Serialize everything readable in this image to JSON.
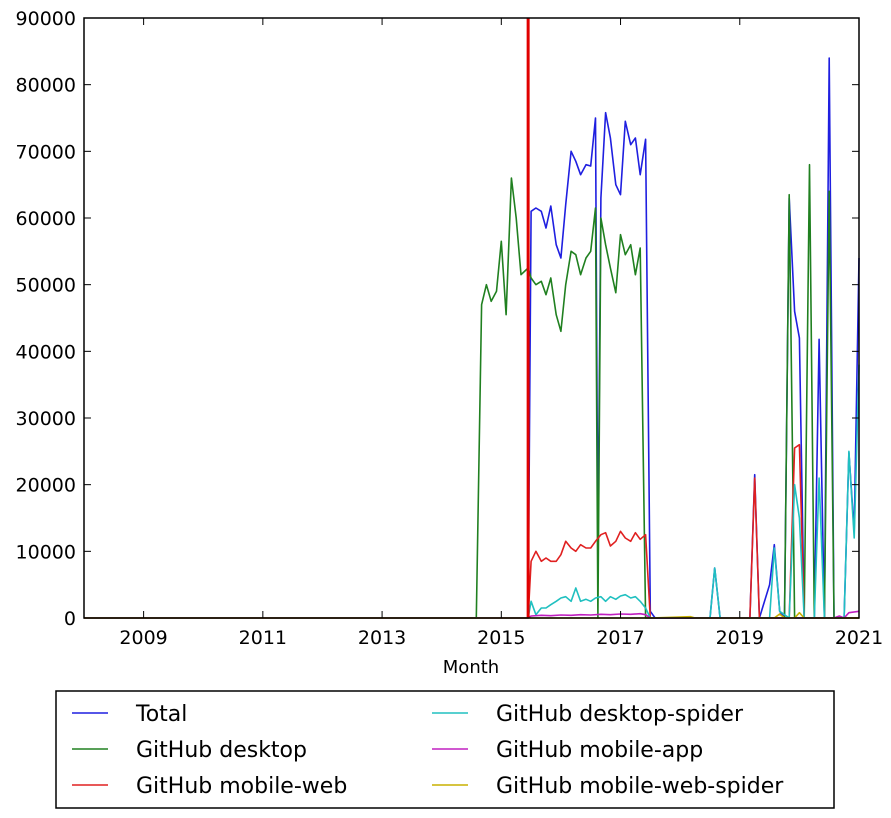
{
  "chart_data": {
    "type": "line",
    "title": "",
    "xlabel": "Month",
    "ylabel": "",
    "xlim": [
      2008.0,
      2021.0
    ],
    "ylim": [
      0,
      90000
    ],
    "x_ticks": [
      "2009",
      "2011",
      "2013",
      "2015",
      "2017",
      "2019",
      "2021"
    ],
    "y_ticks": [
      "0",
      "10000",
      "20000",
      "30000",
      "40000",
      "50000",
      "60000",
      "70000",
      "80000",
      "90000"
    ],
    "grid": false,
    "legend_position": "bottom, below plot, two columns",
    "vertical_marker": {
      "x": 2015.45,
      "color": "#e00000"
    },
    "series": [
      {
        "name": "Total",
        "color": "#1f1fe0",
        "points": [
          [
            2008.0,
            0
          ],
          [
            2014.6,
            0
          ],
          [
            2015.45,
            0
          ],
          [
            2015.5,
            61000
          ],
          [
            2015.58,
            61500
          ],
          [
            2015.67,
            61000
          ],
          [
            2015.75,
            58500
          ],
          [
            2015.83,
            61800
          ],
          [
            2015.92,
            56000
          ],
          [
            2016.0,
            54000
          ],
          [
            2016.08,
            62000
          ],
          [
            2016.17,
            70000
          ],
          [
            2016.25,
            68500
          ],
          [
            2016.33,
            66500
          ],
          [
            2016.42,
            68000
          ],
          [
            2016.5,
            67800
          ],
          [
            2016.58,
            75000
          ],
          [
            2016.62,
            10000
          ],
          [
            2016.67,
            63000
          ],
          [
            2016.75,
            75800
          ],
          [
            2016.83,
            72000
          ],
          [
            2016.92,
            65000
          ],
          [
            2017.0,
            63500
          ],
          [
            2017.08,
            74500
          ],
          [
            2017.17,
            71000
          ],
          [
            2017.25,
            72000
          ],
          [
            2017.33,
            66500
          ],
          [
            2017.42,
            71800
          ],
          [
            2017.5,
            1000
          ],
          [
            2017.58,
            0
          ],
          [
            2018.5,
            0
          ],
          [
            2018.58,
            7500
          ],
          [
            2018.67,
            0
          ],
          [
            2019.17,
            0
          ],
          [
            2019.25,
            21500
          ],
          [
            2019.33,
            0
          ],
          [
            2019.5,
            5000
          ],
          [
            2019.58,
            11000
          ],
          [
            2019.67,
            1000
          ],
          [
            2019.75,
            0
          ],
          [
            2019.83,
            63000
          ],
          [
            2019.92,
            46000
          ],
          [
            2020.0,
            42000
          ],
          [
            2020.08,
            0
          ],
          [
            2020.17,
            0
          ],
          [
            2020.25,
            0
          ],
          [
            2020.33,
            41800
          ],
          [
            2020.42,
            0
          ],
          [
            2020.5,
            84000
          ],
          [
            2020.58,
            0
          ],
          [
            2020.75,
            0
          ],
          [
            2020.83,
            24800
          ],
          [
            2020.92,
            13000
          ],
          [
            2021.0,
            54000
          ]
        ]
      },
      {
        "name": "GitHub desktop",
        "color": "#208020",
        "points": [
          [
            2008.0,
            0
          ],
          [
            2014.58,
            0
          ],
          [
            2014.67,
            47000
          ],
          [
            2014.75,
            50000
          ],
          [
            2014.83,
            47500
          ],
          [
            2014.92,
            49000
          ],
          [
            2015.0,
            56500
          ],
          [
            2015.08,
            45500
          ],
          [
            2015.17,
            66000
          ],
          [
            2015.25,
            60000
          ],
          [
            2015.33,
            51500
          ],
          [
            2015.45,
            52500
          ],
          [
            2015.5,
            51000
          ],
          [
            2015.58,
            50000
          ],
          [
            2015.67,
            50500
          ],
          [
            2015.75,
            48500
          ],
          [
            2015.83,
            51000
          ],
          [
            2015.92,
            45500
          ],
          [
            2016.0,
            43000
          ],
          [
            2016.08,
            50000
          ],
          [
            2016.17,
            55000
          ],
          [
            2016.25,
            54500
          ],
          [
            2016.33,
            51500
          ],
          [
            2016.42,
            54000
          ],
          [
            2016.5,
            55000
          ],
          [
            2016.58,
            61500
          ],
          [
            2016.62,
            0
          ],
          [
            2016.67,
            60000
          ],
          [
            2016.75,
            56000
          ],
          [
            2016.83,
            52500
          ],
          [
            2016.92,
            48800
          ],
          [
            2017.0,
            57500
          ],
          [
            2017.08,
            54500
          ],
          [
            2017.17,
            56000
          ],
          [
            2017.25,
            51500
          ],
          [
            2017.33,
            55500
          ],
          [
            2017.42,
            0
          ],
          [
            2018.0,
            0
          ],
          [
            2019.75,
            0
          ],
          [
            2019.83,
            63500
          ],
          [
            2019.92,
            0
          ],
          [
            2020.08,
            0
          ],
          [
            2020.17,
            68000
          ],
          [
            2020.25,
            0
          ],
          [
            2020.42,
            0
          ],
          [
            2020.5,
            64000
          ],
          [
            2020.58,
            0
          ],
          [
            2021.0,
            0
          ]
        ]
      },
      {
        "name": "GitHub mobile-web",
        "color": "#e02020",
        "points": [
          [
            2008.0,
            0
          ],
          [
            2015.45,
            0
          ],
          [
            2015.5,
            8500
          ],
          [
            2015.58,
            10000
          ],
          [
            2015.67,
            8500
          ],
          [
            2015.75,
            9000
          ],
          [
            2015.83,
            8500
          ],
          [
            2015.92,
            8500
          ],
          [
            2016.0,
            9500
          ],
          [
            2016.08,
            11500
          ],
          [
            2016.17,
            10500
          ],
          [
            2016.25,
            10000
          ],
          [
            2016.33,
            11000
          ],
          [
            2016.42,
            10500
          ],
          [
            2016.5,
            10500
          ],
          [
            2016.58,
            11500
          ],
          [
            2016.67,
            12500
          ],
          [
            2016.75,
            12800
          ],
          [
            2016.83,
            10800
          ],
          [
            2016.92,
            11500
          ],
          [
            2017.0,
            13000
          ],
          [
            2017.08,
            12000
          ],
          [
            2017.17,
            11500
          ],
          [
            2017.25,
            12800
          ],
          [
            2017.33,
            11800
          ],
          [
            2017.42,
            12500
          ],
          [
            2017.5,
            0
          ],
          [
            2019.17,
            0
          ],
          [
            2019.25,
            21000
          ],
          [
            2019.33,
            0
          ],
          [
            2019.83,
            0
          ],
          [
            2019.92,
            25500
          ],
          [
            2020.0,
            26000
          ],
          [
            2020.08,
            0
          ],
          [
            2021.0,
            0
          ]
        ]
      },
      {
        "name": "GitHub desktop-spider",
        "color": "#20c0c0",
        "points": [
          [
            2008.0,
            0
          ],
          [
            2015.45,
            0
          ],
          [
            2015.5,
            2500
          ],
          [
            2015.58,
            500
          ],
          [
            2015.67,
            1500
          ],
          [
            2015.75,
            1500
          ],
          [
            2015.83,
            2000
          ],
          [
            2015.92,
            2500
          ],
          [
            2016.0,
            3000
          ],
          [
            2016.08,
            3200
          ],
          [
            2016.17,
            2500
          ],
          [
            2016.25,
            4500
          ],
          [
            2016.33,
            2500
          ],
          [
            2016.42,
            2800
          ],
          [
            2016.5,
            2500
          ],
          [
            2016.58,
            3000
          ],
          [
            2016.67,
            3200
          ],
          [
            2016.75,
            2500
          ],
          [
            2016.83,
            3200
          ],
          [
            2016.92,
            2800
          ],
          [
            2017.0,
            3300
          ],
          [
            2017.08,
            3500
          ],
          [
            2017.17,
            3000
          ],
          [
            2017.25,
            3200
          ],
          [
            2017.33,
            2500
          ],
          [
            2017.42,
            1500
          ],
          [
            2017.5,
            0
          ],
          [
            2018.5,
            0
          ],
          [
            2018.58,
            7500
          ],
          [
            2018.67,
            0
          ],
          [
            2019.5,
            0
          ],
          [
            2019.58,
            10500
          ],
          [
            2019.67,
            1000
          ],
          [
            2019.83,
            0
          ],
          [
            2019.92,
            20000
          ],
          [
            2020.0,
            15000
          ],
          [
            2020.08,
            0
          ],
          [
            2020.25,
            0
          ],
          [
            2020.33,
            21000
          ],
          [
            2020.42,
            0
          ],
          [
            2020.75,
            0
          ],
          [
            2020.83,
            25000
          ],
          [
            2020.92,
            12000
          ],
          [
            2021.0,
            38000
          ]
        ]
      },
      {
        "name": "GitHub mobile-app",
        "color": "#c020c0",
        "points": [
          [
            2008.0,
            0
          ],
          [
            2015.45,
            0
          ],
          [
            2015.5,
            300
          ],
          [
            2015.67,
            400
          ],
          [
            2015.83,
            350
          ],
          [
            2016.0,
            450
          ],
          [
            2016.17,
            400
          ],
          [
            2016.33,
            500
          ],
          [
            2016.5,
            450
          ],
          [
            2016.67,
            550
          ],
          [
            2016.83,
            500
          ],
          [
            2017.0,
            600
          ],
          [
            2017.17,
            550
          ],
          [
            2017.33,
            650
          ],
          [
            2017.42,
            500
          ],
          [
            2017.5,
            0
          ],
          [
            2020.58,
            0
          ],
          [
            2020.67,
            300
          ],
          [
            2020.75,
            0
          ],
          [
            2020.83,
            800
          ],
          [
            2021.0,
            1000
          ]
        ]
      },
      {
        "name": "GitHub mobile-web-spider",
        "color": "#c8b000",
        "points": [
          [
            2008.0,
            0
          ],
          [
            2017.5,
            0
          ],
          [
            2018.17,
            200
          ],
          [
            2018.25,
            0
          ],
          [
            2019.58,
            0
          ],
          [
            2019.67,
            600
          ],
          [
            2019.75,
            0
          ],
          [
            2019.92,
            0
          ],
          [
            2020.0,
            800
          ],
          [
            2020.08,
            0
          ],
          [
            2021.0,
            0
          ]
        ]
      }
    ]
  }
}
